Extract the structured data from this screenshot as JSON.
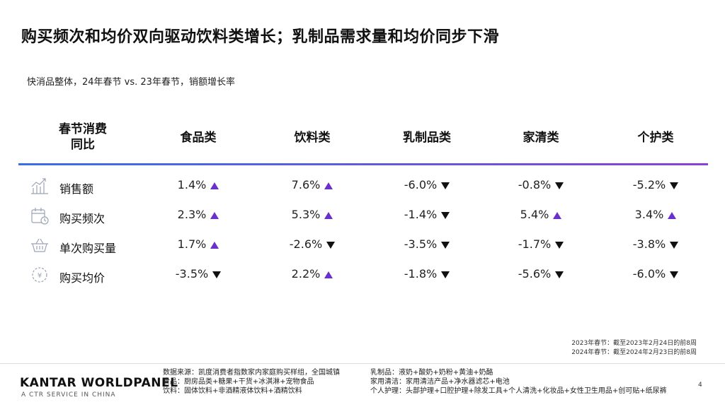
{
  "title": "购买频次和均价双向驱动饮料类增长；乳制品需求量和均价同步下滑",
  "subtitle": "快消品整体，24年春节 vs. 23年春节，销额增长率",
  "table": {
    "metric_header": "春节消费\n同比",
    "columns": [
      "食品类",
      "饮料类",
      "乳制品类",
      "家清类",
      "个护类"
    ],
    "rows": [
      {
        "label": "销售额",
        "icon": "sales-chart-icon",
        "cells": [
          {
            "value": "1.4%",
            "dir": "up"
          },
          {
            "value": "7.6%",
            "dir": "up"
          },
          {
            "value": "-6.0%",
            "dir": "down"
          },
          {
            "value": "-0.8%",
            "dir": "down"
          },
          {
            "value": "-5.2%",
            "dir": "down"
          }
        ]
      },
      {
        "label": "购买频次",
        "icon": "calendar-icon",
        "cells": [
          {
            "value": "2.3%",
            "dir": "up"
          },
          {
            "value": "5.3%",
            "dir": "up"
          },
          {
            "value": "-1.4%",
            "dir": "down"
          },
          {
            "value": "5.4%",
            "dir": "up"
          },
          {
            "value": "3.4%",
            "dir": "up"
          }
        ]
      },
      {
        "label": "单次购买量",
        "icon": "basket-icon",
        "cells": [
          {
            "value": "1.7%",
            "dir": "up"
          },
          {
            "value": "-2.6%",
            "dir": "down"
          },
          {
            "value": "-3.5%",
            "dir": "down"
          },
          {
            "value": "-1.7%",
            "dir": "down"
          },
          {
            "value": "-3.8%",
            "dir": "down"
          }
        ]
      },
      {
        "label": "购买均价",
        "icon": "price-tag-icon",
        "cells": [
          {
            "value": "-3.5%",
            "dir": "down"
          },
          {
            "value": "2.2%",
            "dir": "up"
          },
          {
            "value": "-1.8%",
            "dir": "down"
          },
          {
            "value": "-5.6%",
            "dir": "down"
          },
          {
            "value": "-6.0%",
            "dir": "down"
          }
        ]
      }
    ]
  },
  "period_notes": [
    "2023年春节：截至2023年2月24日的前8周",
    "2024年春节：截至2024年2月23日的前8周"
  ],
  "footer": {
    "logo": "KANTAR WORLDPANEL",
    "logo_sub": "A CTR SERVICE IN CHINA",
    "left_notes": [
      "数据来源：凯度消费者指数家内家庭购买样组，全国城镇",
      "食品：厨房品类+糖果+干货+冰淇淋+宠物食品",
      "饮料：固体饮料+非酒精液体饮料+酒精饮料"
    ],
    "right_notes": [
      "乳制品：液奶+酸奶+奶粉+黄油+奶酪",
      "家用清洁：家用清洁产品+净水器滤芯+电池",
      "个人护理：头部护理+口腔护理+除发工具+个人清洗+化妆品+女性卫生用品+创可贴+纸尿裤"
    ],
    "page_number": "4"
  },
  "colors": {
    "up": "#6a2fcc",
    "down": "#111111",
    "rule_start": "#3a6ee6",
    "rule_end": "#8a3fd6"
  }
}
